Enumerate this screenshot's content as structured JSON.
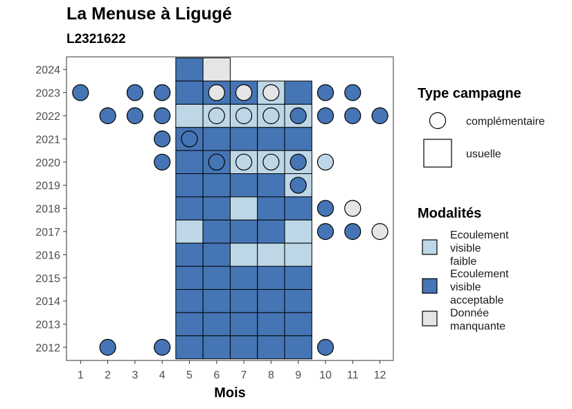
{
  "title": "La Menuse à Ligugé",
  "subtitle": "L2321622",
  "chart_data": {
    "type": "heatmap",
    "xlabel": "Mois",
    "x_ticks": [
      1,
      2,
      3,
      4,
      5,
      6,
      7,
      8,
      9,
      10,
      11,
      12
    ],
    "y_ticks": [
      2012,
      2013,
      2014,
      2015,
      2016,
      2017,
      2018,
      2019,
      2020,
      2021,
      2022,
      2023,
      2024
    ],
    "colors": {
      "faible": "#bdd7e7",
      "acceptable": "#4575b4",
      "manquante": "#e5e5e5"
    },
    "usuelle": [
      {
        "year": 2012,
        "month": 5,
        "modalite": "acceptable"
      },
      {
        "year": 2012,
        "month": 6,
        "modalite": "acceptable"
      },
      {
        "year": 2012,
        "month": 7,
        "modalite": "acceptable"
      },
      {
        "year": 2012,
        "month": 8,
        "modalite": "acceptable"
      },
      {
        "year": 2012,
        "month": 9,
        "modalite": "acceptable"
      },
      {
        "year": 2013,
        "month": 5,
        "modalite": "acceptable"
      },
      {
        "year": 2013,
        "month": 6,
        "modalite": "acceptable"
      },
      {
        "year": 2013,
        "month": 7,
        "modalite": "acceptable"
      },
      {
        "year": 2013,
        "month": 8,
        "modalite": "acceptable"
      },
      {
        "year": 2013,
        "month": 9,
        "modalite": "acceptable"
      },
      {
        "year": 2014,
        "month": 5,
        "modalite": "acceptable"
      },
      {
        "year": 2014,
        "month": 6,
        "modalite": "acceptable"
      },
      {
        "year": 2014,
        "month": 7,
        "modalite": "acceptable"
      },
      {
        "year": 2014,
        "month": 8,
        "modalite": "acceptable"
      },
      {
        "year": 2014,
        "month": 9,
        "modalite": "acceptable"
      },
      {
        "year": 2015,
        "month": 5,
        "modalite": "acceptable"
      },
      {
        "year": 2015,
        "month": 6,
        "modalite": "acceptable"
      },
      {
        "year": 2015,
        "month": 7,
        "modalite": "acceptable"
      },
      {
        "year": 2015,
        "month": 8,
        "modalite": "acceptable"
      },
      {
        "year": 2015,
        "month": 9,
        "modalite": "acceptable"
      },
      {
        "year": 2016,
        "month": 5,
        "modalite": "acceptable"
      },
      {
        "year": 2016,
        "month": 6,
        "modalite": "acceptable"
      },
      {
        "year": 2016,
        "month": 7,
        "modalite": "faible"
      },
      {
        "year": 2016,
        "month": 8,
        "modalite": "faible"
      },
      {
        "year": 2016,
        "month": 9,
        "modalite": "faible"
      },
      {
        "year": 2017,
        "month": 5,
        "modalite": "faible"
      },
      {
        "year": 2017,
        "month": 6,
        "modalite": "acceptable"
      },
      {
        "year": 2017,
        "month": 7,
        "modalite": "acceptable"
      },
      {
        "year": 2017,
        "month": 8,
        "modalite": "acceptable"
      },
      {
        "year": 2017,
        "month": 9,
        "modalite": "faible"
      },
      {
        "year": 2018,
        "month": 5,
        "modalite": "acceptable"
      },
      {
        "year": 2018,
        "month": 6,
        "modalite": "acceptable"
      },
      {
        "year": 2018,
        "month": 7,
        "modalite": "faible"
      },
      {
        "year": 2018,
        "month": 8,
        "modalite": "acceptable"
      },
      {
        "year": 2018,
        "month": 9,
        "modalite": "acceptable"
      },
      {
        "year": 2019,
        "month": 5,
        "modalite": "acceptable"
      },
      {
        "year": 2019,
        "month": 6,
        "modalite": "acceptable"
      },
      {
        "year": 2019,
        "month": 7,
        "modalite": "acceptable"
      },
      {
        "year": 2019,
        "month": 8,
        "modalite": "acceptable"
      },
      {
        "year": 2019,
        "month": 9,
        "modalite": "faible"
      },
      {
        "year": 2020,
        "month": 5,
        "modalite": "acceptable"
      },
      {
        "year": 2020,
        "month": 6,
        "modalite": "acceptable"
      },
      {
        "year": 2020,
        "month": 7,
        "modalite": "faible"
      },
      {
        "year": 2020,
        "month": 8,
        "modalite": "faible"
      },
      {
        "year": 2020,
        "month": 9,
        "modalite": "faible"
      },
      {
        "year": 2021,
        "month": 5,
        "modalite": "acceptable"
      },
      {
        "year": 2021,
        "month": 6,
        "modalite": "acceptable"
      },
      {
        "year": 2021,
        "month": 7,
        "modalite": "acceptable"
      },
      {
        "year": 2021,
        "month": 8,
        "modalite": "acceptable"
      },
      {
        "year": 2021,
        "month": 9,
        "modalite": "acceptable"
      },
      {
        "year": 2022,
        "month": 5,
        "modalite": "faible"
      },
      {
        "year": 2022,
        "month": 6,
        "modalite": "faible"
      },
      {
        "year": 2022,
        "month": 7,
        "modalite": "faible"
      },
      {
        "year": 2022,
        "month": 8,
        "modalite": "faible"
      },
      {
        "year": 2022,
        "month": 9,
        "modalite": "faible"
      },
      {
        "year": 2023,
        "month": 5,
        "modalite": "acceptable"
      },
      {
        "year": 2023,
        "month": 6,
        "modalite": "acceptable"
      },
      {
        "year": 2023,
        "month": 7,
        "modalite": "acceptable"
      },
      {
        "year": 2023,
        "month": 8,
        "modalite": "faible"
      },
      {
        "year": 2023,
        "month": 9,
        "modalite": "acceptable"
      },
      {
        "year": 2024,
        "month": 5,
        "modalite": "acceptable"
      },
      {
        "year": 2024,
        "month": 6,
        "modalite": "manquante"
      }
    ],
    "complementaire": [
      {
        "year": 2012,
        "month": 2,
        "modalite": "acceptable"
      },
      {
        "year": 2012,
        "month": 4,
        "modalite": "acceptable"
      },
      {
        "year": 2012,
        "month": 10,
        "modalite": "acceptable"
      },
      {
        "year": 2017,
        "month": 10,
        "modalite": "acceptable"
      },
      {
        "year": 2017,
        "month": 11,
        "modalite": "acceptable"
      },
      {
        "year": 2017,
        "month": 12,
        "modalite": "manquante"
      },
      {
        "year": 2018,
        "month": 10,
        "modalite": "acceptable"
      },
      {
        "year": 2018,
        "month": 11,
        "modalite": "manquante"
      },
      {
        "year": 2019,
        "month": 9,
        "modalite": "acceptable"
      },
      {
        "year": 2020,
        "month": 4,
        "modalite": "acceptable"
      },
      {
        "year": 2020,
        "month": 6,
        "modalite": "acceptable"
      },
      {
        "year": 2020,
        "month": 7,
        "modalite": "faible"
      },
      {
        "year": 2020,
        "month": 8,
        "modalite": "faible"
      },
      {
        "year": 2020,
        "month": 9,
        "modalite": "acceptable"
      },
      {
        "year": 2020,
        "month": 10,
        "modalite": "faible"
      },
      {
        "year": 2021,
        "month": 4,
        "modalite": "acceptable"
      },
      {
        "year": 2021,
        "month": 5,
        "modalite": "acceptable"
      },
      {
        "year": 2022,
        "month": 2,
        "modalite": "acceptable"
      },
      {
        "year": 2022,
        "month": 3,
        "modalite": "acceptable"
      },
      {
        "year": 2022,
        "month": 4,
        "modalite": "acceptable"
      },
      {
        "year": 2022,
        "month": 6,
        "modalite": "faible"
      },
      {
        "year": 2022,
        "month": 7,
        "modalite": "faible"
      },
      {
        "year": 2022,
        "month": 8,
        "modalite": "faible"
      },
      {
        "year": 2022,
        "month": 9,
        "modalite": "acceptable"
      },
      {
        "year": 2022,
        "month": 10,
        "modalite": "acceptable"
      },
      {
        "year": 2022,
        "month": 11,
        "modalite": "acceptable"
      },
      {
        "year": 2022,
        "month": 12,
        "modalite": "acceptable"
      },
      {
        "year": 2023,
        "month": 1,
        "modalite": "acceptable"
      },
      {
        "year": 2023,
        "month": 3,
        "modalite": "acceptable"
      },
      {
        "year": 2023,
        "month": 4,
        "modalite": "acceptable"
      },
      {
        "year": 2023,
        "month": 6,
        "modalite": "manquante"
      },
      {
        "year": 2023,
        "month": 7,
        "modalite": "manquante"
      },
      {
        "year": 2023,
        "month": 8,
        "modalite": "manquante"
      },
      {
        "year": 2023,
        "month": 10,
        "modalite": "acceptable"
      },
      {
        "year": 2023,
        "month": 11,
        "modalite": "acceptable"
      }
    ],
    "legend_type": {
      "title": "Type campagne",
      "items": [
        "complémentaire",
        "usuelle"
      ]
    },
    "legend_modalites": {
      "title": "Modalités",
      "items": [
        {
          "key": "faible",
          "lines": [
            "Ecoulement",
            "visible",
            "faible"
          ]
        },
        {
          "key": "acceptable",
          "lines": [
            "Ecoulement",
            "visible",
            "acceptable"
          ]
        },
        {
          "key": "manquante",
          "lines": [
            "Donnée",
            "manquante"
          ]
        }
      ]
    }
  }
}
